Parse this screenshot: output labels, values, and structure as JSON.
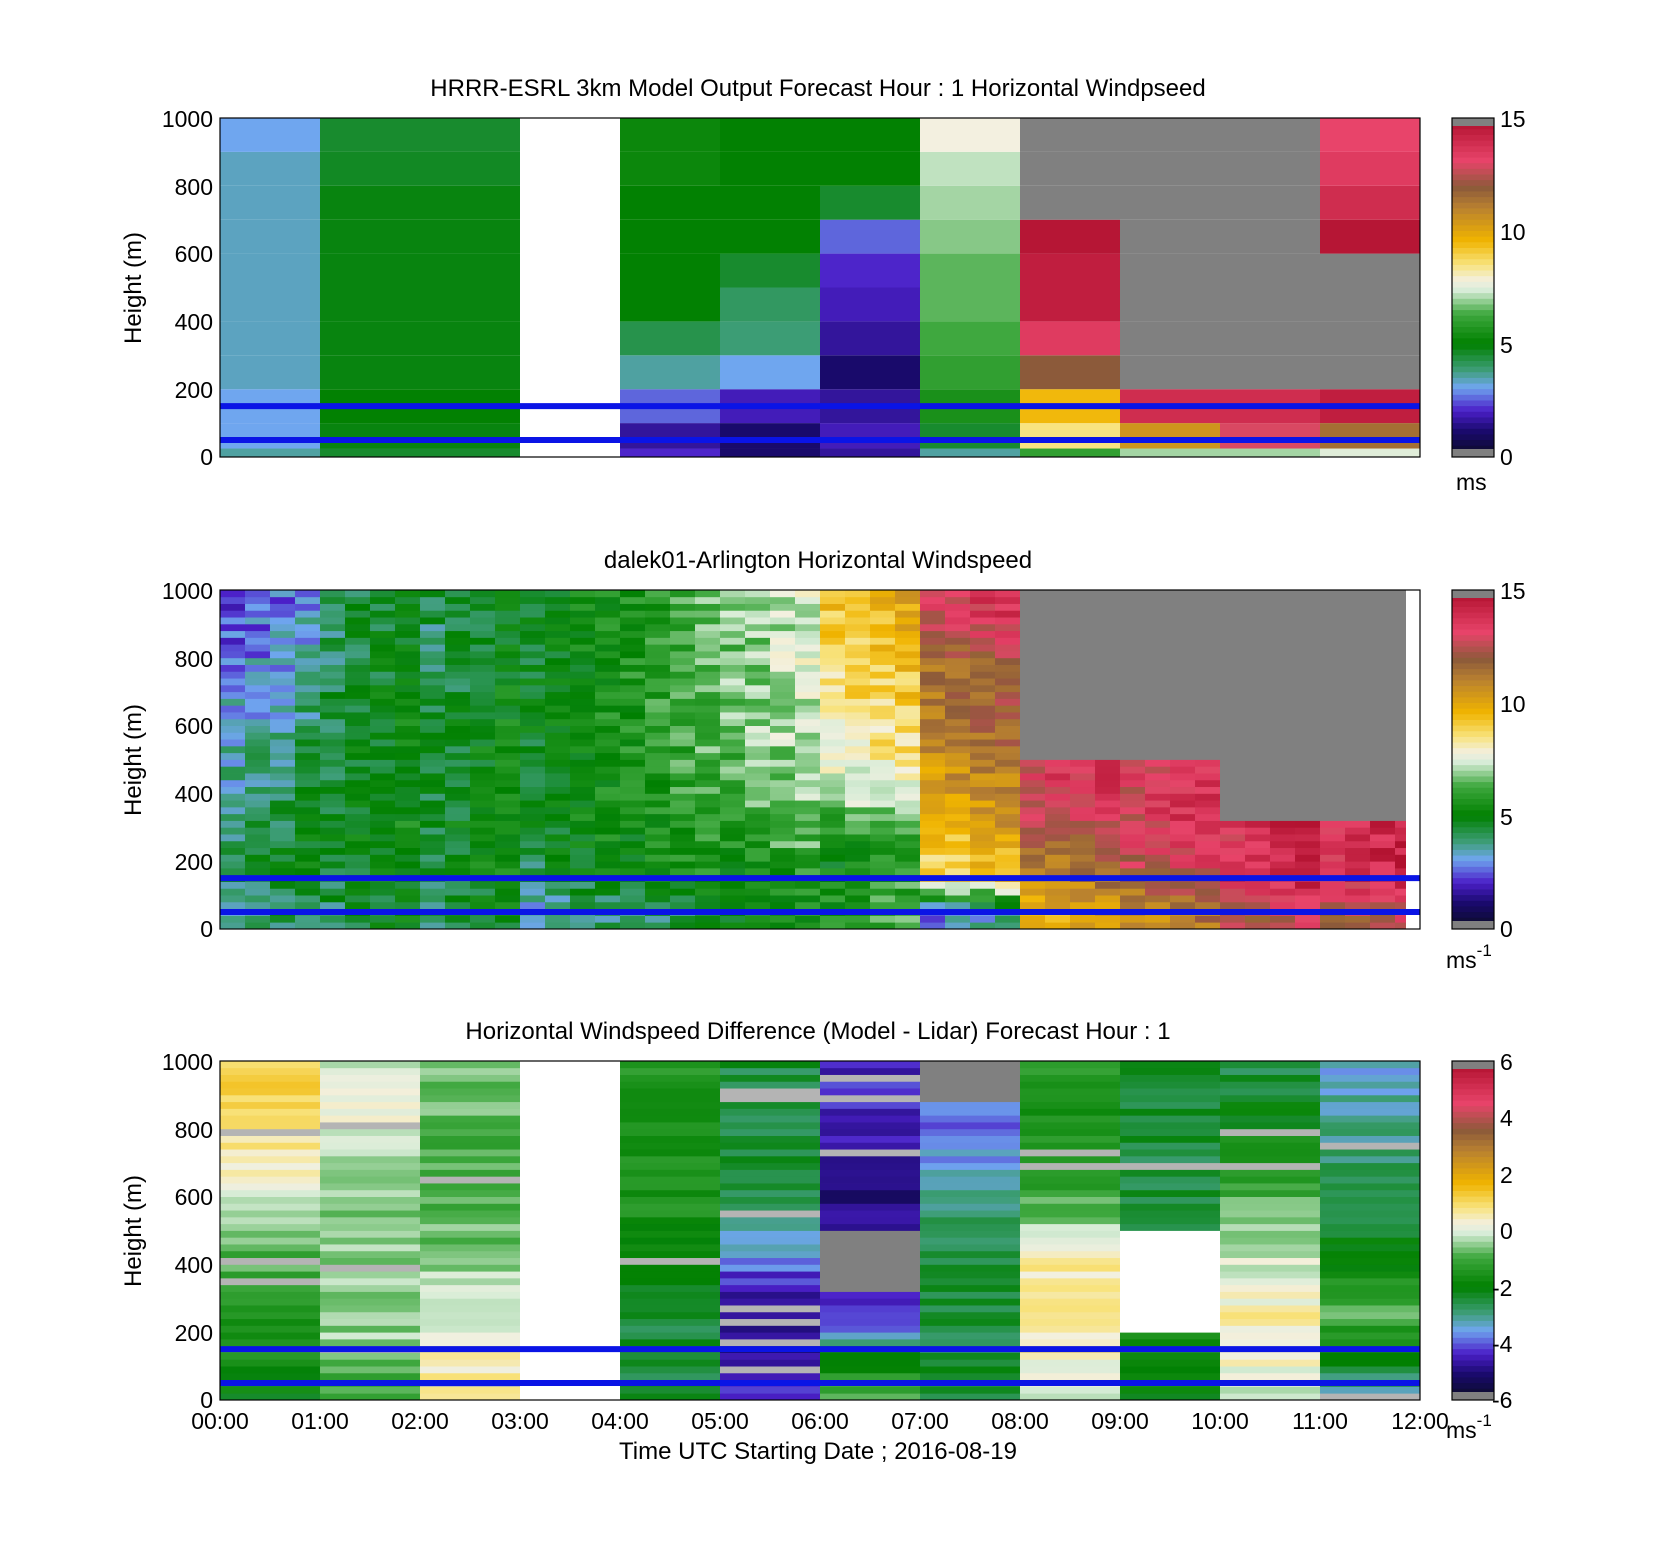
{
  "panels": [
    {
      "id": "model",
      "title": "HRRR-ESRL 3km Model Output   Forecast Hour : 1 Horizontal Windpseed",
      "ylabel": "Height (m)",
      "cbar_unit": "ms",
      "cbar_exp": "",
      "cbar_ticks": [
        "15",
        "10",
        "5",
        "0"
      ],
      "yticks": [
        "1000",
        "800",
        "600",
        "400",
        "200",
        "0"
      ]
    },
    {
      "id": "lidar",
      "title": "dalek01-Arlington  Horizontal Windspeed",
      "ylabel": "Height (m)",
      "cbar_unit": "ms",
      "cbar_exp": "-1",
      "cbar_ticks": [
        "15",
        "10",
        "5",
        "0"
      ],
      "yticks": [
        "1000",
        "800",
        "600",
        "400",
        "200",
        "0"
      ]
    },
    {
      "id": "diff",
      "title": "Horizontal Windspeed Difference (Model - Lidar) Forecast Hour : 1",
      "ylabel": "Height (m)",
      "cbar_unit": "ms",
      "cbar_exp": "-1",
      "cbar_ticks": [
        "6",
        "4",
        "2",
        "0",
        "-2",
        "-4",
        "-6"
      ],
      "yticks": [
        "1000",
        "800",
        "600",
        "400",
        "200",
        "0"
      ]
    }
  ],
  "xticks": [
    "00:00",
    "01:00",
    "02:00",
    "03:00",
    "04:00",
    "05:00",
    "06:00",
    "07:00",
    "08:00",
    "09:00",
    "10:00",
    "11:00",
    "12:00"
  ],
  "xlabel": "Time UTC  Starting Date ; 2016-08-19",
  "colors": {
    "reference_lines": "#0a14e6",
    "missing_above_range": "#808080"
  },
  "chart_data": [
    {
      "type": "heatmap",
      "title": "HRRR-ESRL 3km Model Output   Forecast Hour : 1 Horizontal Windpseed",
      "ylabel": "Height (m)",
      "xlim": [
        "00:00",
        "12:00"
      ],
      "ylim": [
        0,
        1000
      ],
      "clim": [
        0,
        15
      ],
      "units": "ms",
      "reference_heights_m": [
        150,
        50
      ],
      "hours": [
        "00:00",
        "01:00",
        "02:00",
        "03:00",
        "04:00",
        "05:00",
        "06:00",
        "07:00",
        "08:00",
        "09:00",
        "10:00",
        "11:00"
      ],
      "heights_m": [
        0,
        50,
        150,
        250,
        350,
        450,
        550,
        650,
        750,
        850,
        950
      ],
      "values_ms": [
        [
          3.5,
          4.5,
          4.5,
          null,
          2.0,
          1.0,
          1.5,
          3.5,
          6.0,
          7.0,
          7.0,
          7.5
        ],
        [
          3.0,
          4.8,
          4.8,
          null,
          1.5,
          1.0,
          1.8,
          4.5,
          8.5,
          10.5,
          13.0,
          11.5
        ],
        [
          3.0,
          5.0,
          5.0,
          null,
          2.5,
          1.8,
          1.5,
          5.5,
          9.5,
          14.0,
          14.0,
          14.5
        ],
        [
          3.3,
          4.8,
          4.8,
          null,
          3.5,
          3.0,
          1.0,
          6.0,
          12.0,
          null,
          null,
          null
        ],
        [
          3.3,
          4.8,
          4.8,
          null,
          4.2,
          3.8,
          1.5,
          6.3,
          13.5,
          null,
          null,
          null
        ],
        [
          3.3,
          4.8,
          4.8,
          null,
          5.0,
          4.0,
          1.8,
          6.5,
          14.5,
          null,
          null,
          null
        ],
        [
          3.3,
          4.8,
          4.8,
          null,
          5.0,
          4.5,
          2.0,
          6.5,
          14.5,
          null,
          null,
          null
        ],
        [
          3.3,
          4.8,
          4.8,
          null,
          5.0,
          5.0,
          2.5,
          6.8,
          14.8,
          null,
          null,
          14.8
        ],
        [
          3.3,
          4.8,
          4.8,
          null,
          5.0,
          5.0,
          4.5,
          7.0,
          null,
          null,
          null,
          14.0
        ],
        [
          3.3,
          4.6,
          4.6,
          null,
          5.2,
          5.0,
          5.0,
          7.2,
          null,
          null,
          null,
          13.5
        ],
        [
          3.0,
          4.5,
          4.5,
          null,
          5.2,
          5.0,
          5.0,
          7.8,
          null,
          null,
          null,
          13.2
        ]
      ]
    },
    {
      "type": "heatmap",
      "title": "dalek01-Arlington  Horizontal Windspeed",
      "ylabel": "Height (m)",
      "xlim": [
        "00:00",
        "12:00"
      ],
      "ylim": [
        0,
        1000
      ],
      "clim": [
        0,
        15
      ],
      "units": "ms-1",
      "reference_heights_m": [
        150,
        50
      ],
      "hours": [
        "00:00",
        "01:00",
        "02:00",
        "03:00",
        "04:00",
        "05:00",
        "06:00",
        "07:00",
        "08:00",
        "09:00",
        "10:00",
        "11:00"
      ],
      "heights_m": [
        50,
        150,
        250,
        400,
        600,
        800,
        950
      ],
      "approx_values_ms": [
        [
          4.0,
          4.5,
          4.5,
          3.5,
          4.0,
          5.0,
          6.0,
          3.0,
          10.0,
          11.0,
          12.5,
          12.5
        ],
        [
          4.5,
          4.8,
          4.8,
          4.5,
          5.2,
          5.5,
          5.5,
          9.0,
          11.0,
          12.5,
          14.0,
          14.0
        ],
        [
          4.5,
          5.0,
          5.0,
          5.0,
          5.5,
          6.0,
          5.5,
          9.5,
          12.0,
          13.5,
          14.0,
          14.0
        ],
        [
          4.0,
          4.8,
          4.8,
          5.0,
          5.8,
          6.5,
          7.5,
          10.5,
          13.5,
          13.5,
          null,
          null
        ],
        [
          3.5,
          4.8,
          4.8,
          5.2,
          6.0,
          7.0,
          8.5,
          11.5,
          null,
          null,
          null,
          null
        ],
        [
          3.0,
          4.5,
          4.5,
          5.0,
          6.0,
          7.0,
          9.0,
          12.0,
          null,
          null,
          null,
          null
        ],
        [
          2.5,
          4.5,
          4.5,
          5.0,
          6.0,
          7.2,
          9.5,
          13.5,
          null,
          null,
          null,
          null
        ]
      ]
    },
    {
      "type": "heatmap",
      "title": "Horizontal Windspeed Difference (Model - Lidar) Forecast Hour : 1",
      "ylabel": "Height (m)",
      "xlabel": "Time UTC  Starting Date ; 2016-08-19",
      "xlim": [
        "00:00",
        "12:00"
      ],
      "ylim": [
        0,
        1000
      ],
      "clim": [
        -6,
        6
      ],
      "units": "ms-1",
      "reference_heights_m": [
        150,
        50
      ],
      "hours": [
        "00:00",
        "01:00",
        "02:00",
        "03:00",
        "04:00",
        "05:00",
        "06:00",
        "07:00",
        "08:00",
        "09:00",
        "10:00",
        "11:00"
      ],
      "heights_m": [
        50,
        150,
        250,
        400,
        600,
        800,
        950
      ],
      "approx_values_ms": [
        [
          -2.0,
          -1.0,
          0.5,
          null,
          -2.5,
          -4.5,
          -1.0,
          -2.5,
          0.0,
          -2.0,
          0.0,
          -3.0
        ],
        [
          -1.5,
          -0.5,
          0.5,
          null,
          -2.5,
          -5.0,
          -2.5,
          -2.5,
          0.5,
          -1.5,
          0.5,
          -2.0
        ],
        [
          -1.5,
          -0.5,
          0.0,
          null,
          -2.5,
          -5.0,
          -4.5,
          -2.5,
          0.5,
          null,
          0.5,
          -1.0
        ],
        [
          -1.0,
          -0.5,
          -0.5,
          null,
          -2.0,
          -4.0,
          null,
          -2.5,
          0.5,
          null,
          0.0,
          -2.0
        ],
        [
          0.0,
          -0.5,
          -1.0,
          null,
          -1.5,
          -2.5,
          -5.0,
          -3.0,
          -1.0,
          -2.5,
          -1.0,
          -2.5
        ],
        [
          1.0,
          0.0,
          -1.0,
          null,
          -1.5,
          -2.5,
          -4.5,
          -4.0,
          -1.5,
          -2.5,
          -2.0,
          -3.0
        ],
        [
          1.0,
          0.0,
          -0.5,
          null,
          -1.5,
          -2.5,
          -4.5,
          null,
          -1.5,
          -2.5,
          -2.5,
          -3.5
        ]
      ]
    }
  ]
}
